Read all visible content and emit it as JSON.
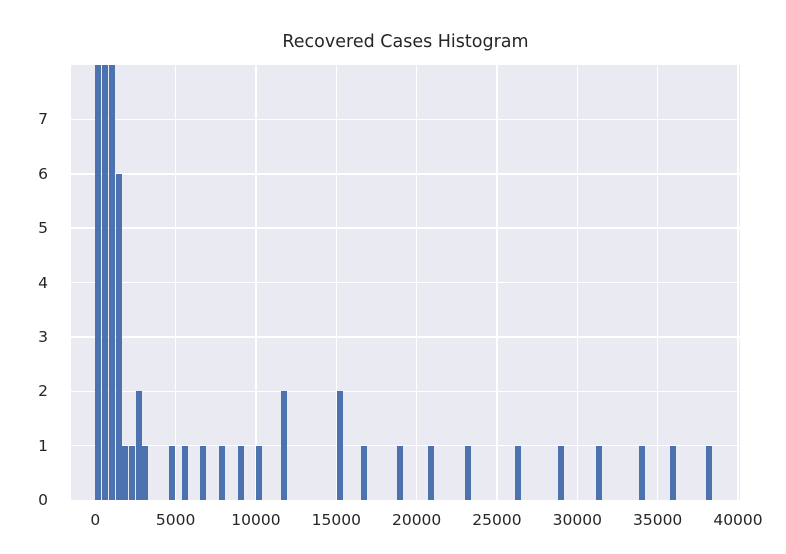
{
  "figure": {
    "title": "Recovered Cases Histogram"
  },
  "chart_data": {
    "type": "bar",
    "subtype": "histogram",
    "title": "Recovered Cases Histogram",
    "xlabel": "",
    "ylabel": "",
    "xlim": [
      -1510,
      40125
    ],
    "ylim": [
      0,
      8
    ],
    "x_ticks": [
      0,
      5000,
      10000,
      15000,
      20000,
      25000,
      30000,
      35000,
      40000
    ],
    "y_ticks": [
      0,
      1,
      2,
      3,
      4,
      5,
      6,
      7
    ],
    "grid": true,
    "legend": false,
    "bin_width_units": 417,
    "bars": [
      {
        "x": 200,
        "count": 8
      },
      {
        "x": 620,
        "count": 8
      },
      {
        "x": 1030,
        "count": 8
      },
      {
        "x": 1450,
        "count": 6
      },
      {
        "x": 1870,
        "count": 1
      },
      {
        "x": 2290,
        "count": 1
      },
      {
        "x": 2700,
        "count": 2
      },
      {
        "x": 3120,
        "count": 1
      },
      {
        "x": 4760,
        "count": 1
      },
      {
        "x": 5560,
        "count": 1
      },
      {
        "x": 6720,
        "count": 1
      },
      {
        "x": 7870,
        "count": 1
      },
      {
        "x": 9080,
        "count": 1
      },
      {
        "x": 10200,
        "count": 1
      },
      {
        "x": 11730,
        "count": 2
      },
      {
        "x": 15250,
        "count": 2
      },
      {
        "x": 16710,
        "count": 1
      },
      {
        "x": 18980,
        "count": 1
      },
      {
        "x": 20910,
        "count": 1
      },
      {
        "x": 23210,
        "count": 1
      },
      {
        "x": 26330,
        "count": 1
      },
      {
        "x": 29000,
        "count": 1
      },
      {
        "x": 31340,
        "count": 1
      },
      {
        "x": 34010,
        "count": 1
      },
      {
        "x": 35940,
        "count": 1
      },
      {
        "x": 38220,
        "count": 1
      }
    ],
    "colors": {
      "bar": "#4C72B0",
      "plot_bg": "#EAEAF2",
      "grid": "#FFFFFF",
      "text": "#262626",
      "figure_bg": "#FFFFFF"
    }
  }
}
